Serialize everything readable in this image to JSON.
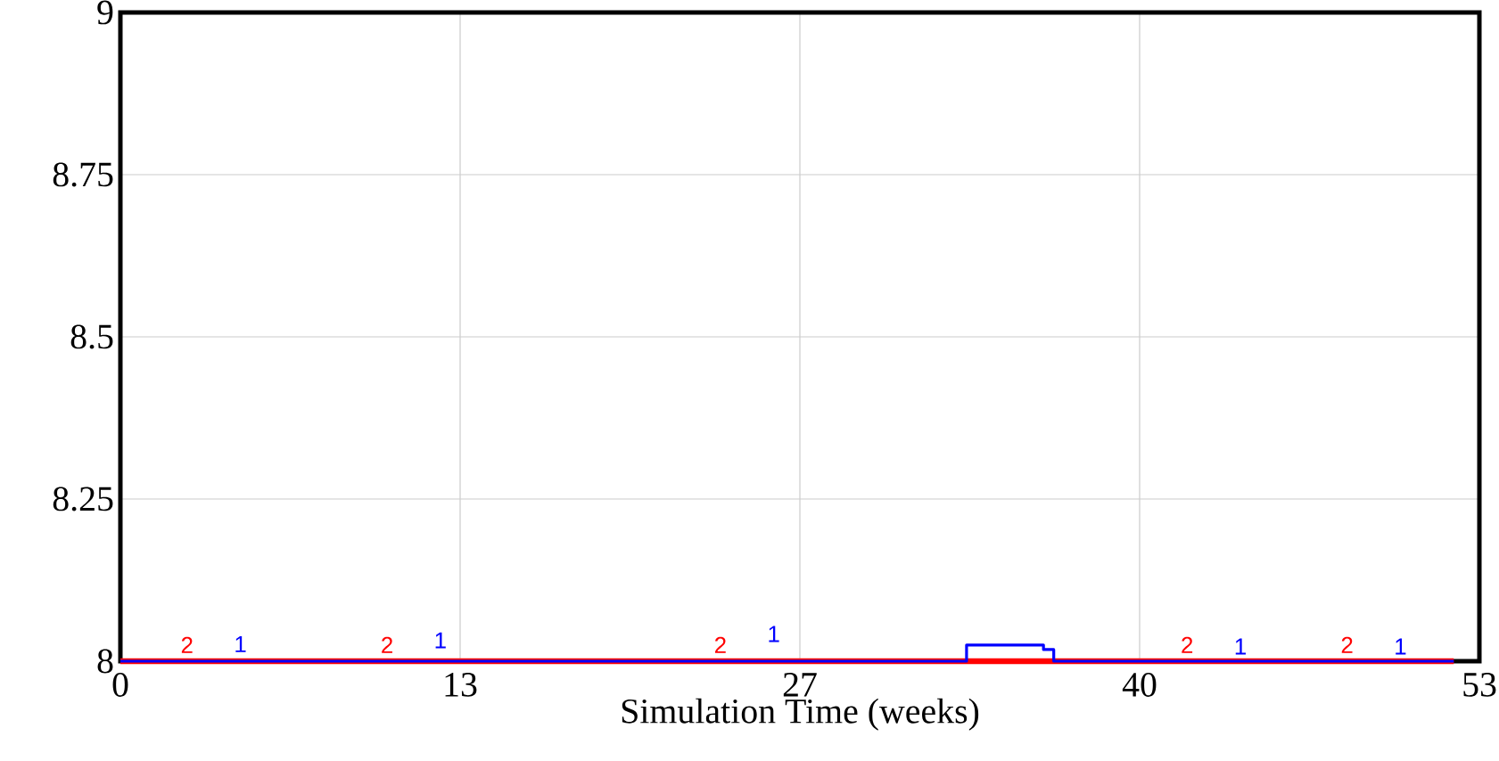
{
  "chart_data": {
    "type": "step",
    "xlabel": "Simulation Time (weeks)",
    "series": [
      {
        "name": "2",
        "color": "#ff0000",
        "x": [
          0,
          52
        ],
        "values": [
          8,
          8
        ]
      },
      {
        "name": "1",
        "color": "#0000ff",
        "x": [
          0,
          33,
          36,
          36.4,
          52
        ],
        "values": [
          8,
          8.025,
          8.018,
          8,
          8
        ]
      }
    ],
    "xlim": [
      0,
      53
    ],
    "xticks": [
      0,
      {
        "value": 13.25,
        "label": "13"
      },
      {
        "value": 26.5,
        "label": "27"
      },
      {
        "value": 39.75,
        "label": "40"
      },
      53
    ],
    "ylim": [
      8,
      9
    ],
    "yticks": [
      8,
      8.25,
      8.5,
      8.75,
      9
    ],
    "grid": true
  }
}
